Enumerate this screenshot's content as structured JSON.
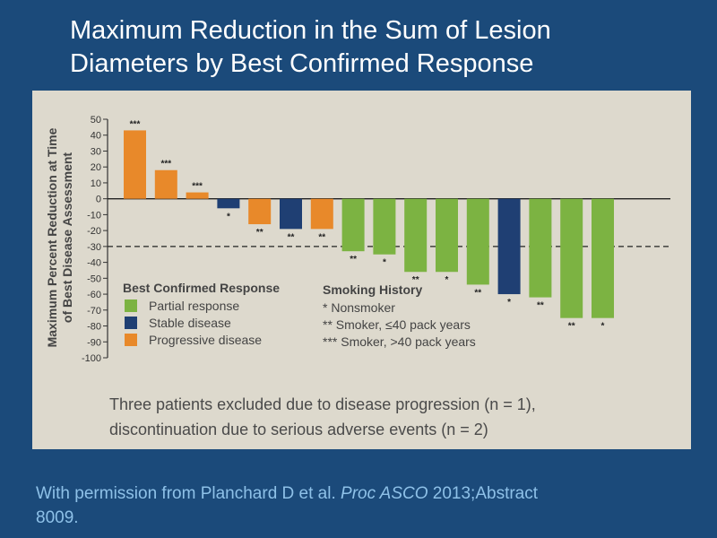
{
  "slide": {
    "title_line1": "Maximum Reduction in the Sum of Lesion",
    "title_line2": "Diameters by Best Confirmed Response",
    "footnote_line1": "Three patients excluded due to disease progression (n = 1),",
    "footnote_line2": "discontinuation due to serious adverse events (n = 2)",
    "credit_prefix": "With permission from Planchard D et al. ",
    "credit_journal": "Proc ASCO",
    "credit_suffix": " 2013;Abstract",
    "credit_line2": "8009."
  },
  "chart_data": {
    "type": "bar",
    "ylabel_line1": "Maximum Percent Reduction at Time",
    "ylabel_line2": "of Best Disease Assessment",
    "ylim": [
      -100,
      50
    ],
    "yticks": [
      50,
      40,
      30,
      20,
      10,
      0,
      -10,
      -20,
      -30,
      -40,
      -50,
      -60,
      -70,
      -80,
      -90,
      -100
    ],
    "reference_line": -30,
    "colors": {
      "Partial response": "#7cb342",
      "Stable disease": "#1f3f73",
      "Progressive disease": "#e8892a"
    },
    "bars": [
      {
        "value": 43,
        "response": "Progressive disease",
        "smoking": "***"
      },
      {
        "value": 18,
        "response": "Progressive disease",
        "smoking": "***"
      },
      {
        "value": 4,
        "response": "Progressive disease",
        "smoking": "***"
      },
      {
        "value": -6,
        "response": "Stable disease",
        "smoking": "*"
      },
      {
        "value": -16,
        "response": "Progressive disease",
        "smoking": "**"
      },
      {
        "value": -19,
        "response": "Stable disease",
        "smoking": "**"
      },
      {
        "value": -19,
        "response": "Progressive disease",
        "smoking": "**"
      },
      {
        "value": -33,
        "response": "Partial response",
        "smoking": "**"
      },
      {
        "value": -35,
        "response": "Partial response",
        "smoking": "*"
      },
      {
        "value": -46,
        "response": "Partial response",
        "smoking": "**"
      },
      {
        "value": -46,
        "response": "Partial response",
        "smoking": "*"
      },
      {
        "value": -54,
        "response": "Partial response",
        "smoking": "**"
      },
      {
        "value": -60,
        "response": "Stable disease",
        "smoking": "*"
      },
      {
        "value": -62,
        "response": "Partial response",
        "smoking": "**"
      },
      {
        "value": -75,
        "response": "Partial response",
        "smoking": "**"
      },
      {
        "value": -75,
        "response": "Partial response",
        "smoking": "*"
      }
    ],
    "legend_response": {
      "title": "Best Confirmed Response",
      "items": [
        "Partial response",
        "Stable disease",
        "Progressive disease"
      ]
    },
    "legend_smoking": {
      "title": "Smoking History",
      "items": [
        "* Nonsmoker",
        "** Smoker, ≤40 pack years",
        "*** Smoker, >40 pack years"
      ]
    }
  }
}
